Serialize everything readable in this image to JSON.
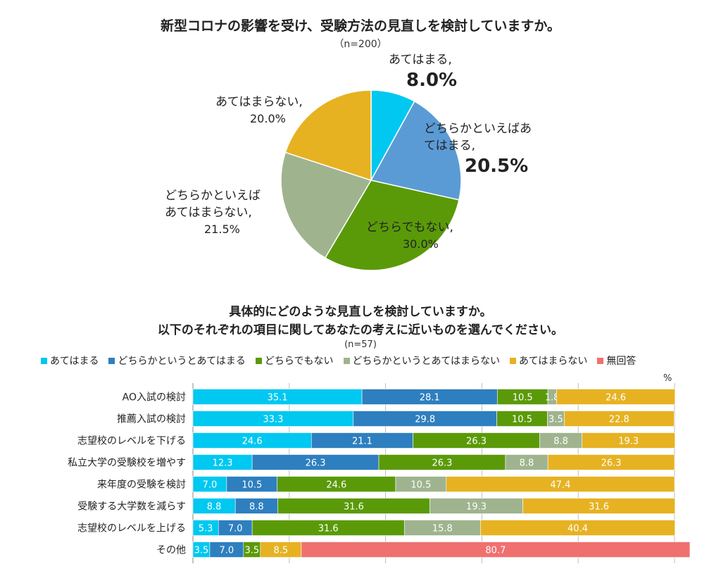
{
  "chart_data": [
    {
      "type": "pie",
      "title": "新型コロナの影響を受け、受験方法の見直しを検討していますか。",
      "subtitle": "（n=200）",
      "slices": [
        {
          "label": "あてはまる",
          "value": 8.0,
          "label_text": "あてはまる,",
          "value_text": "8.0%",
          "color": "#00c8f0"
        },
        {
          "label": "どちらかといえばあてはまる",
          "value": 20.5,
          "label_text": "どちらかといえばあ\nてはまる,",
          "value_text": "20.5%",
          "color": "#5b9bd5"
        },
        {
          "label": "どちらでもない",
          "value": 30.0,
          "label_text": "どちらでもない,",
          "value_text": "30.0%",
          "color": "#5a9a08"
        },
        {
          "label": "どちらかといえばあてはまらない",
          "value": 21.5,
          "label_text": "どちらかといえば\nあてはまらない,",
          "value_text": "21.5%",
          "color": "#9fb48e"
        },
        {
          "label": "あてはまらない",
          "value": 20.0,
          "label_text": "あてはまらない,",
          "value_text": "20.0%",
          "color": "#e6b222"
        }
      ]
    },
    {
      "type": "bar",
      "stacked": true,
      "orientation": "horizontal",
      "title_line1": "具体的にどのような見直しを検討していますか。",
      "title_line2": "以下のそれぞれの項目に関してあなたの考えに近いものを選んでください。",
      "subtitle": "(n=57)",
      "unit": "%",
      "xlim": [
        0,
        100
      ],
      "categories": [
        "AO入試の検討",
        "推薦入試の検討",
        "志望校のレベルを下げる",
        "私立大学の受験校を増やす",
        "来年度の受験を検討",
        "受験する大学数を減らす",
        "志望校のレベルを上げる",
        "その他"
      ],
      "series": [
        {
          "name": "あてはまる",
          "color": "#00c8f0",
          "values": [
            35.1,
            33.3,
            24.6,
            12.3,
            7.0,
            8.8,
            5.3,
            3.5
          ]
        },
        {
          "name": "どちらかというとあてはまる",
          "color": "#2e7fbf",
          "values": [
            28.1,
            29.8,
            21.1,
            26.3,
            10.5,
            8.8,
            7.0,
            7.0
          ]
        },
        {
          "name": "どちらでもない",
          "color": "#5a9a08",
          "values": [
            10.5,
            10.5,
            26.3,
            26.3,
            24.6,
            31.6,
            31.6,
            3.5
          ]
        },
        {
          "name": "どちらかというとあてはまらない",
          "color": "#9fb48e",
          "values": [
            1.8,
            3.5,
            8.8,
            8.8,
            10.5,
            19.3,
            15.8,
            0
          ]
        },
        {
          "name": "あてはまらない",
          "color": "#e6b222",
          "values": [
            24.6,
            22.8,
            19.3,
            26.3,
            47.4,
            31.6,
            40.4,
            8.5
          ]
        },
        {
          "name": "無回答",
          "color": "#f07070",
          "values": [
            0,
            0,
            0,
            0,
            0,
            0,
            0,
            80.7
          ]
        }
      ]
    }
  ]
}
